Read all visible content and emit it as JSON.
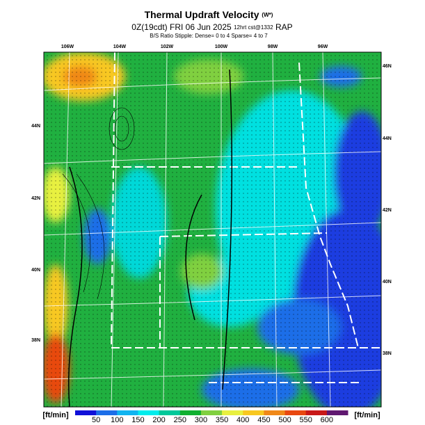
{
  "header": {
    "title": "Thermal Updraft Velocity",
    "title_unit": "(W*)",
    "subtitle_main": "0Z(19cdt) FRI 06 Jun 2025",
    "subtitle_small": "12hrt cst@1332",
    "subtitle_model": "RAP",
    "stipple_note": "B/S Ratio Stipple:  Dense= 0 to 4  Sparse= 4 to 7"
  },
  "map": {
    "lon_labels": [
      "106W",
      "104W",
      "102W",
      "100W",
      "98W",
      "96W"
    ],
    "lat_labels_left": [
      "44N",
      "42N",
      "40N",
      "38N"
    ],
    "lat_labels_right": [
      "46N",
      "44N",
      "42N",
      "40N",
      "38N"
    ]
  },
  "colorbar": {
    "unit_left": "[ft/min]",
    "unit_right": "[ft/min]",
    "labels": [
      50,
      100,
      150,
      200,
      250,
      300,
      350,
      400,
      450,
      500,
      550,
      600
    ],
    "colors": [
      "#1010d8",
      "#1c6ee8",
      "#10b4f0",
      "#00ecec",
      "#00c89a",
      "#10b030",
      "#80d040",
      "#e8f040",
      "#f8c820",
      "#f08818",
      "#e84810",
      "#c81818",
      "#601870"
    ]
  }
}
